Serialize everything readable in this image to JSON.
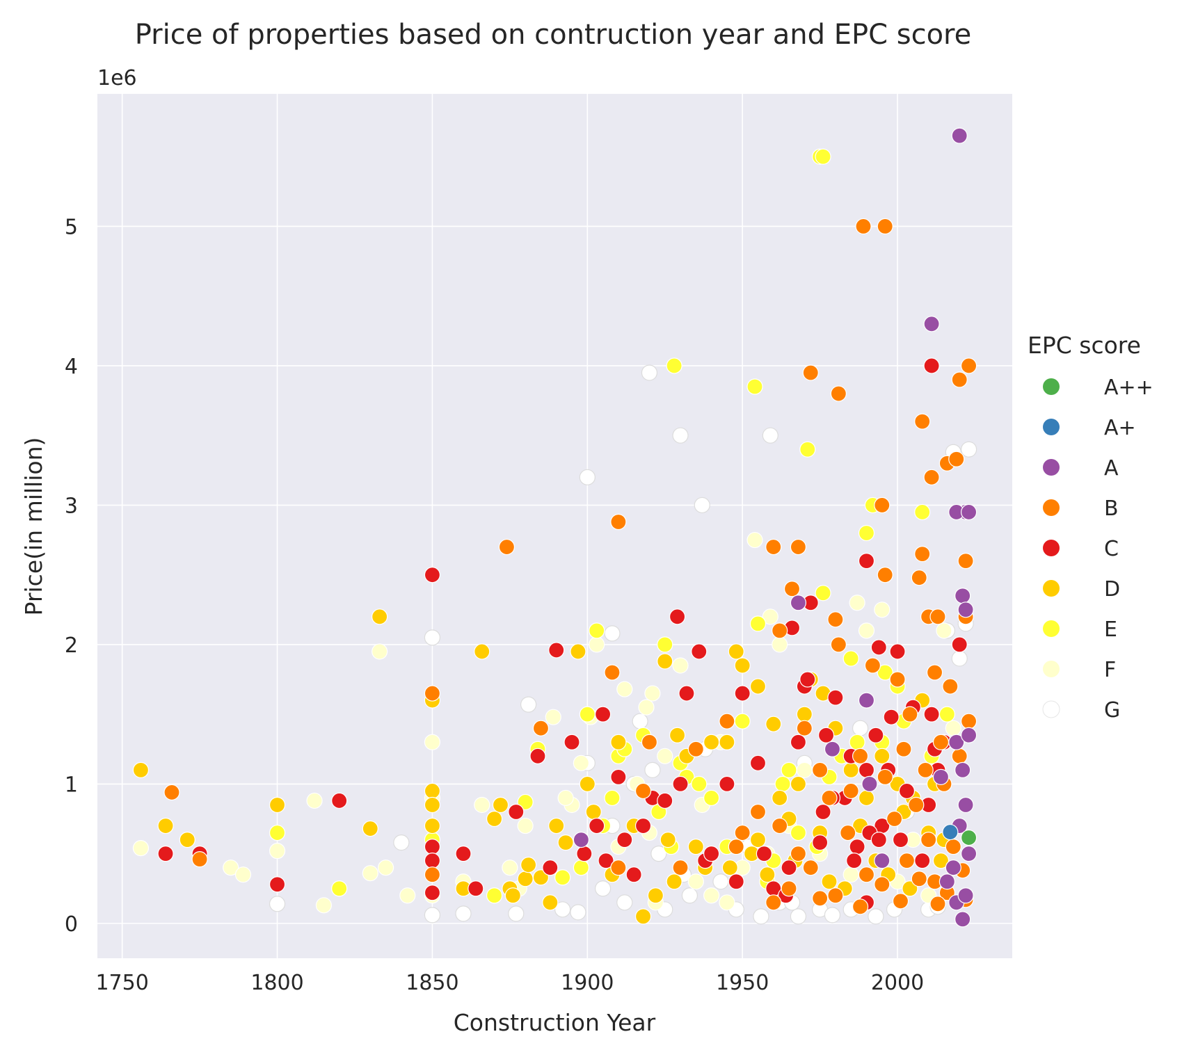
{
  "chart_data": {
    "type": "scatter",
    "title": "Price of properties based on contruction year and EPC score",
    "xlabel": "Construction Year",
    "ylabel": "Price(in million)",
    "y_offset_text": "1e6",
    "xlim": [
      1742,
      2037
    ],
    "ylim": [
      -250000,
      5950000
    ],
    "x_ticks": [
      1750,
      1800,
      1850,
      1900,
      1950,
      2000
    ],
    "y_ticks": [
      0,
      1000000,
      2000000,
      3000000,
      4000000,
      5000000
    ],
    "y_tick_labels": [
      "0",
      "1",
      "2",
      "3",
      "4",
      "5"
    ],
    "grid": true,
    "background": "#eaeaf2",
    "legend": {
      "title": "EPC score",
      "position": "right"
    },
    "series": [
      {
        "name": "A++",
        "color": "#4daf4a",
        "x": [
          2023
        ],
        "y": [
          615000
        ]
      },
      {
        "name": "A+",
        "color": "#377eb8",
        "x": [
          2017
        ],
        "y": [
          655000
        ]
      },
      {
        "name": "A",
        "color": "#984ea3",
        "x": [
          2020,
          2011,
          2022,
          2019,
          2023,
          1968,
          2021,
          2022,
          1990,
          2019,
          2023,
          2021,
          1898,
          2018,
          1979,
          2014,
          2020,
          2022,
          2023,
          1991,
          2016,
          2021,
          1995,
          2019,
          2022
        ],
        "y": [
          5650000,
          4300000,
          2950000,
          2950000,
          2950000,
          2300000,
          2350000,
          2250000,
          1600000,
          1300000,
          1350000,
          1100000,
          600000,
          400000,
          1250000,
          1050000,
          700000,
          850000,
          500000,
          1000000,
          300000,
          30000,
          450000,
          150000,
          200000
        ]
      },
      {
        "name": "B",
        "color": "#ff7f00",
        "x": [
          1989,
          1996,
          1972,
          1981,
          2023,
          2020,
          2008,
          2011,
          2016,
          2019,
          1910,
          1874,
          1995,
          2008,
          2022,
          1960,
          1968,
          1996,
          2007,
          1966,
          1980,
          2022,
          1962,
          1981,
          2010,
          2013,
          1850,
          1908,
          1885,
          1766,
          1775,
          1992,
          2000,
          1970,
          1988,
          2004,
          2012,
          2017,
          2023,
          1975,
          1985,
          2002,
          2009,
          2014,
          1955,
          1962,
          1978,
          1996,
          2006,
          2015,
          2020,
          1968,
          1984,
          1999,
          2010,
          2018,
          1972,
          1990,
          2003,
          2012,
          2021,
          1965,
          1980,
          1995,
          2007,
          2016,
          1960,
          1975,
          1988,
          2001,
          2013,
          2022,
          1920,
          1935,
          1945,
          1910,
          1930,
          1850,
          1918,
          1950,
          1948
        ],
        "y": [
          5000000,
          5000000,
          3950000,
          3800000,
          4000000,
          3900000,
          3600000,
          3200000,
          3300000,
          3330000,
          2880000,
          2700000,
          3000000,
          2650000,
          2600000,
          2700000,
          2700000,
          2500000,
          2480000,
          2400000,
          2180000,
          2200000,
          2100000,
          2000000,
          2200000,
          2200000,
          1650000,
          1800000,
          1400000,
          940000,
          460000,
          1850000,
          1750000,
          1400000,
          1200000,
          1500000,
          1800000,
          1700000,
          1450000,
          1100000,
          950000,
          1250000,
          1100000,
          1300000,
          800000,
          700000,
          900000,
          1050000,
          850000,
          1000000,
          1200000,
          500000,
          650000,
          750000,
          600000,
          550000,
          400000,
          350000,
          450000,
          300000,
          380000,
          250000,
          200000,
          280000,
          320000,
          220000,
          150000,
          180000,
          120000,
          160000,
          140000,
          170000,
          1300000,
          1250000,
          1450000,
          400000,
          400000,
          350000,
          950000,
          650000,
          550000
        ]
      },
      {
        "name": "C",
        "color": "#e41a1c",
        "x": [
          2011,
          1850,
          1990,
          1994,
          1929,
          1936,
          2020,
          1972,
          1966,
          1895,
          1890,
          1910,
          1905,
          1884,
          1764,
          1775,
          1820,
          1800,
          1850,
          1860,
          1864,
          1877,
          1850,
          1850,
          1921,
          1930,
          1938,
          1945,
          1950,
          1955,
          1970,
          1980,
          1993,
          2000,
          2011,
          2015,
          2005,
          1998,
          1985,
          1977,
          1990,
          1968,
          1957,
          1925,
          1912,
          1903,
          1995,
          2003,
          1983,
          1987,
          2010,
          1965,
          1948,
          1915,
          1975,
          1960,
          1991,
          2008,
          2012,
          1940,
          1932,
          1888,
          1899,
          1906,
          1918,
          1971,
          1979,
          2001,
          1986,
          1994,
          2013,
          1990,
          1997,
          1976,
          1964
        ],
        "y": [
          4000000,
          2500000,
          2600000,
          1980000,
          2200000,
          1950000,
          2000000,
          2300000,
          2120000,
          1300000,
          1960000,
          1050000,
          1500000,
          1200000,
          500000,
          500000,
          880000,
          280000,
          550000,
          500000,
          250000,
          800000,
          450000,
          220000,
          900000,
          1000000,
          450000,
          1000000,
          1650000,
          1150000,
          1700000,
          1620000,
          1350000,
          1950000,
          1500000,
          1300000,
          1550000,
          1480000,
          1200000,
          1350000,
          1100000,
          1300000,
          500000,
          880000,
          600000,
          700000,
          700000,
          950000,
          900000,
          550000,
          850000,
          400000,
          300000,
          350000,
          580000,
          250000,
          650000,
          450000,
          1250000,
          500000,
          1650000,
          400000,
          500000,
          450000,
          700000,
          1750000,
          900000,
          600000,
          450000,
          600000,
          1100000,
          150000,
          1100000,
          800000,
          200000
        ]
      },
      {
        "name": "D",
        "color": "#ffcc00",
        "x": [
          1756,
          1764,
          1771,
          1800,
          1830,
          1833,
          1850,
          1866,
          1870,
          1875,
          1880,
          1888,
          1897,
          1900,
          1910,
          1925,
          1929,
          1932,
          1945,
          1948,
          1955,
          1960,
          1970,
          1972,
          1976,
          1980,
          1985,
          1990,
          1995,
          2000,
          2005,
          2008,
          2012,
          1902,
          1915,
          1935,
          1940,
          1950,
          1962,
          1965,
          1955,
          1968,
          1975,
          1988,
          1993,
          2002,
          2010,
          2015,
          1918,
          1922,
          1928,
          1938,
          1885,
          1893,
          1872,
          1876,
          1908,
          1926,
          1946,
          1953,
          1958,
          1967,
          1978,
          1983,
          1997,
          2004,
          2014,
          1850,
          1850,
          1850,
          1860,
          1881,
          1890
        ],
        "y": [
          1100000,
          700000,
          600000,
          850000,
          680000,
          2200000,
          950000,
          1950000,
          750000,
          250000,
          320000,
          150000,
          1950000,
          1000000,
          1300000,
          1880000,
          1350000,
          1200000,
          1300000,
          1950000,
          1700000,
          1430000,
          1500000,
          1750000,
          1650000,
          1400000,
          1100000,
          900000,
          1200000,
          1000000,
          900000,
          1600000,
          1000000,
          800000,
          700000,
          550000,
          1300000,
          1850000,
          900000,
          750000,
          600000,
          1000000,
          650000,
          700000,
          450000,
          800000,
          650000,
          600000,
          50000,
          200000,
          300000,
          400000,
          330000,
          580000,
          850000,
          200000,
          350000,
          600000,
          400000,
          500000,
          350000,
          450000,
          300000,
          250000,
          350000,
          250000,
          450000,
          700000,
          850000,
          1600000,
          250000,
          420000,
          700000
        ]
      },
      {
        "name": "E",
        "color": "#ffff33",
        "x": [
          1928,
          1975,
          1976,
          1954,
          1971,
          1990,
          2008,
          1992,
          1976,
          1955,
          1925,
          1900,
          1903,
          1884,
          1880,
          1870,
          1860,
          1850,
          1820,
          1800,
          1985,
          1995,
          2000,
          1996,
          1963,
          1932,
          1918,
          1910,
          1940,
          1950,
          1912,
          1930,
          1936,
          1945,
          1965,
          1978,
          1982,
          1987,
          2002,
          2011,
          2016,
          1923,
          1927,
          1908,
          1905,
          1898,
          1892,
          1960,
          1968,
          1974,
          1958
        ],
        "y": [
          4000000,
          5500000,
          5500000,
          3850000,
          3400000,
          2800000,
          2950000,
          3000000,
          2370000,
          2150000,
          2000000,
          1500000,
          2100000,
          1250000,
          870000,
          200000,
          250000,
          600000,
          250000,
          650000,
          1900000,
          1300000,
          1700000,
          1800000,
          1000000,
          1050000,
          1350000,
          1200000,
          900000,
          1450000,
          1250000,
          1150000,
          1000000,
          550000,
          1100000,
          1050000,
          1200000,
          1300000,
          1450000,
          1200000,
          1500000,
          800000,
          550000,
          900000,
          700000,
          400000,
          330000,
          450000,
          650000,
          550000,
          300000
        ]
      },
      {
        "name": "F",
        "color": "#ffffcc",
        "x": [
          1756,
          1785,
          1789,
          1812,
          1815,
          1833,
          1835,
          1842,
          1850,
          1850,
          1850,
          1860,
          1866,
          1875,
          1878,
          1889,
          1895,
          1901,
          1903,
          1912,
          1921,
          1925,
          1930,
          1937,
          1943,
          1954,
          1959,
          1962,
          1970,
          1987,
          1990,
          1995,
          2015,
          2018,
          1830,
          1800,
          1880,
          1893,
          1898,
          1910,
          1916,
          1919,
          1935,
          1940,
          1945,
          1950,
          1955,
          1965,
          1975,
          1985,
          2000,
          2005,
          2010,
          1920,
          1928,
          1922,
          1958
        ],
        "y": [
          540000,
          400000,
          350000,
          880000,
          130000,
          1950000,
          400000,
          200000,
          1300000,
          900000,
          200000,
          300000,
          850000,
          400000,
          250000,
          1480000,
          850000,
          1480000,
          2000000,
          1680000,
          1650000,
          1200000,
          1850000,
          850000,
          1300000,
          2750000,
          2200000,
          2000000,
          1100000,
          2300000,
          2100000,
          2250000,
          2100000,
          1400000,
          360000,
          520000,
          700000,
          900000,
          1150000,
          550000,
          1000000,
          1550000,
          300000,
          200000,
          150000,
          400000,
          600000,
          700000,
          500000,
          350000,
          300000,
          600000,
          200000,
          650000,
          300000,
          150000,
          500000
        ]
      },
      {
        "name": "G",
        "color": "#ffffff",
        "x": [
          1920,
          1930,
          1900,
          1937,
          1959,
          1850,
          1908,
          2018,
          2023,
          1840,
          1800,
          1850,
          1860,
          1881,
          1900,
          1917,
          1938,
          1952,
          1970,
          1988,
          2003,
          2016,
          2022,
          1921,
          1905,
          1912,
          1925,
          1933,
          1948,
          1956,
          1962,
          1968,
          1975,
          1985,
          1993,
          2010,
          2020,
          1877,
          1892,
          1897,
          1943,
          1966,
          1979,
          1999,
          2013,
          1923,
          1931,
          1908,
          1915
        ],
        "y": [
          3950000,
          3500000,
          3200000,
          3000000,
          3500000,
          2050000,
          2080000,
          3380000,
          3400000,
          580000,
          140000,
          60000,
          70000,
          1570000,
          1150000,
          1450000,
          1250000,
          550000,
          1150000,
          1400000,
          800000,
          2100000,
          2150000,
          1100000,
          250000,
          150000,
          100000,
          200000,
          100000,
          50000,
          150000,
          50000,
          100000,
          100000,
          50000,
          100000,
          1900000,
          70000,
          100000,
          80000,
          300000,
          150000,
          60000,
          100000,
          120000,
          500000,
          350000,
          700000,
          1000000
        ]
      }
    ]
  }
}
